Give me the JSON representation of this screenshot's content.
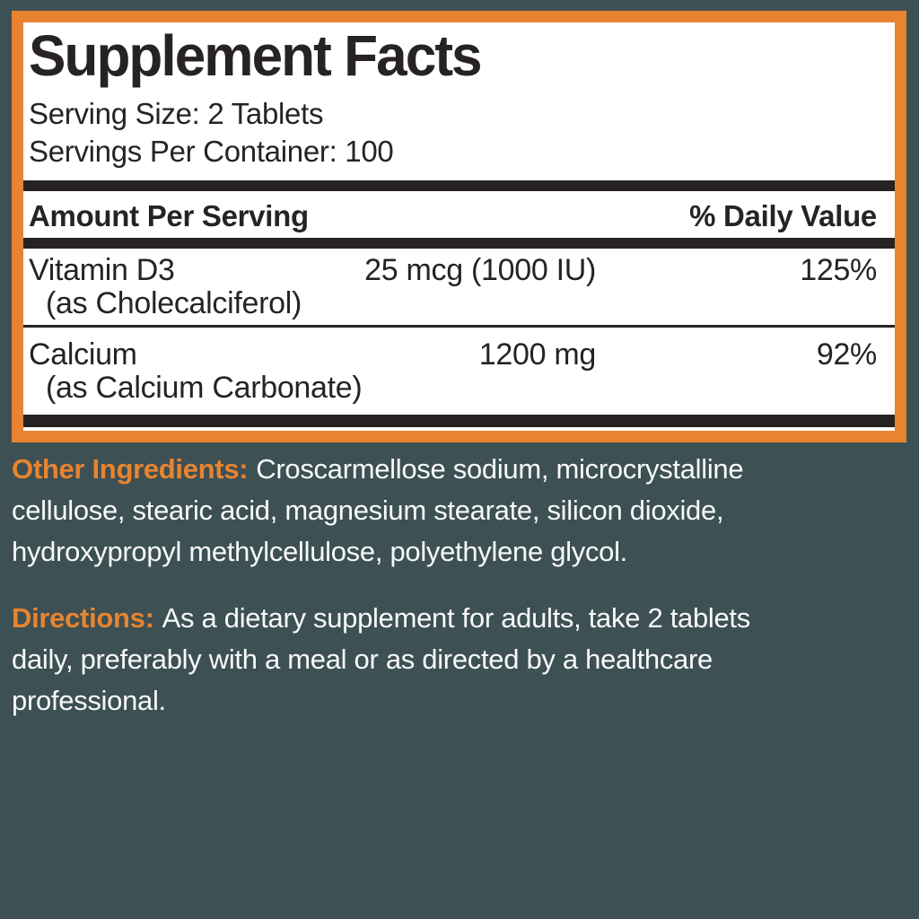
{
  "panel": {
    "title": "Supplement Facts",
    "serving_size": "Serving Size: 2 Tablets",
    "servings_per_container": "Servings Per Container: 100",
    "columns": {
      "amount": "Amount Per Serving",
      "daily_value": "% Daily Value"
    },
    "rows": [
      {
        "name": "Vitamin D3",
        "form": "(as Cholecalciferol)",
        "amount": "25 mcg (1000 IU)",
        "daily_value": "125%"
      },
      {
        "name": "Calcium",
        "form": "(as Calcium Carbonate)",
        "amount": "1200 mg",
        "daily_value": "92%"
      }
    ]
  },
  "sections": {
    "other_ingredients": {
      "label": "Other Ingredients:",
      "lines": [
        "Croscarmellose sodium, microcrystalline",
        "cellulose, stearic acid, magnesium stearate, silicon dioxide,",
        "hydroxypropyl methylcellulose, polyethylene glycol."
      ]
    },
    "directions": {
      "label": "Directions:",
      "lines": [
        "As a dietary supplement for adults, take 2 tablets",
        "daily, preferably with a meal or as directed by a healthcare",
        "professional."
      ]
    }
  },
  "colors": {
    "background": "#3D5054",
    "accent_orange": "#E8842F",
    "ink": "#272324",
    "text_light": "#F8F9F9",
    "panel_bg": "#FFFFFF"
  }
}
